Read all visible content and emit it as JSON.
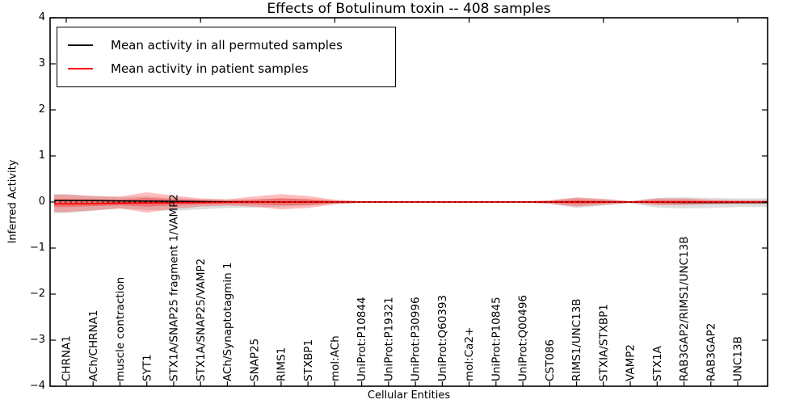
{
  "window": {
    "background": "#ffffff"
  },
  "chart_data": {
    "type": "line",
    "title": "Effects of Botulinum toxin -- 408 samples",
    "xlabel": "Cellular Entities",
    "ylabel": "Inferred Activity",
    "ylim": [
      -4,
      4
    ],
    "ytick_labels": [
      "4",
      "3",
      "2",
      "1",
      "0",
      "−1",
      "−2",
      "−3",
      "−4"
    ],
    "ytick_values": [
      4,
      3,
      2,
      1,
      0,
      -1,
      -2,
      -3,
      -4
    ],
    "grid": false,
    "x_tick_rotation": 90,
    "top_axis_major_tick_indices": [
      0,
      5,
      10,
      15,
      20,
      25
    ],
    "legend": {
      "position": "upper left",
      "entries": [
        {
          "label": "Mean activity in all permuted samples",
          "color": "#000000"
        },
        {
          "label": "Mean activity in patient samples",
          "color": "#ff0000"
        }
      ]
    },
    "categories": [
      "CHRNA1",
      "ACh/CHRNA1",
      "muscle contraction",
      "SYT1",
      "STX1A/SNAP25 fragment 1/VAMP2",
      "STX1A/SNAP25/VAMP2",
      "ACh/Synaptotagmin 1",
      "SNAP25",
      "RIMS1",
      "STXBP1",
      "mol:ACh",
      "UniProt:P10844",
      "UniProt:P19321",
      "UniProt:P30996",
      "UniProt:Q60393",
      "mol:Ca2+",
      "UniProt:P10845",
      "UniProt:Q00496",
      "CST086",
      "RIMS1/UNC13B",
      "STXIA/STXBP1",
      "VAMP2",
      "STX1A",
      "RAB3GAP2/RIMS1/UNC13B",
      "RAB3GAP2",
      "UNC13B"
    ],
    "series": [
      {
        "name": "Mean activity in all permuted samples",
        "color": "#000000",
        "width": 1.5,
        "values": [
          0.03,
          0.03,
          0.025,
          0.02,
          0.015,
          0.01,
          0.005,
          0.002,
          0,
          0,
          0,
          0,
          0,
          0,
          0,
          0,
          0,
          0,
          0,
          0,
          0,
          0,
          -0.005,
          -0.008,
          -0.01,
          -0.01
        ]
      },
      {
        "name": "Mean activity in patient samples",
        "color": "#ff0000",
        "width": 1.8,
        "values": [
          -0.04,
          -0.035,
          -0.025,
          -0.02,
          -0.015,
          -0.01,
          -0.005,
          0,
          0,
          0,
          0,
          0,
          0,
          0,
          0,
          0,
          0,
          0,
          0,
          0,
          0,
          0,
          0,
          0,
          0,
          0
        ]
      }
    ],
    "bands": [
      {
        "name": "permuted-samples-std-band",
        "color": "rgba(0,0,0,0.13)",
        "upper": [
          0.17,
          0.13,
          0.1,
          0.12,
          0.09,
          0.06,
          0.05,
          0.06,
          0.08,
          0.06,
          0.03,
          0.015,
          0.01,
          0.01,
          0.01,
          0.01,
          0.01,
          0.01,
          0.03,
          0.09,
          0.06,
          0.02,
          0.09,
          0.1,
          0.09,
          0.08
        ],
        "lower": [
          -0.24,
          -0.19,
          -0.14,
          -0.17,
          -0.19,
          -0.16,
          -0.13,
          -0.12,
          -0.1,
          -0.08,
          -0.04,
          -0.02,
          -0.01,
          -0.01,
          -0.01,
          -0.01,
          -0.01,
          -0.01,
          -0.04,
          -0.13,
          -0.08,
          -0.03,
          -0.12,
          -0.14,
          -0.13,
          -0.11
        ]
      },
      {
        "name": "patient-samples-outer-band",
        "color": "rgba(255,0,0,0.26)",
        "upper": [
          0.16,
          0.13,
          0.12,
          0.21,
          0.14,
          0.08,
          0.06,
          0.12,
          0.17,
          0.13,
          0.05,
          0.02,
          0.015,
          0.015,
          0.015,
          0.015,
          0.015,
          0.015,
          0.04,
          0.1,
          0.07,
          0.02,
          0.08,
          0.08,
          0.05,
          0.04
        ],
        "lower": [
          -0.22,
          -0.18,
          -0.14,
          -0.23,
          -0.15,
          -0.1,
          -0.08,
          -0.1,
          -0.16,
          -0.13,
          -0.05,
          -0.02,
          -0.015,
          -0.015,
          -0.015,
          -0.015,
          -0.015,
          -0.015,
          -0.04,
          -0.1,
          -0.06,
          -0.02,
          -0.07,
          -0.07,
          -0.05,
          -0.04
        ]
      },
      {
        "name": "patient-samples-inner-band",
        "color": "rgba(255,0,0,0.30)",
        "upper": [
          0.07,
          0.06,
          0.05,
          0.09,
          0.06,
          0.04,
          0.03,
          0.05,
          0.08,
          0.06,
          0.025,
          0.01,
          0.008,
          0.008,
          0.008,
          0.008,
          0.008,
          0.008,
          0.02,
          0.05,
          0.03,
          0.01,
          0.04,
          0.04,
          0.025,
          0.02
        ],
        "lower": [
          -0.11,
          -0.09,
          -0.07,
          -0.1,
          -0.07,
          -0.05,
          -0.04,
          -0.05,
          -0.07,
          -0.06,
          -0.025,
          -0.01,
          -0.008,
          -0.008,
          -0.008,
          -0.008,
          -0.008,
          -0.008,
          -0.02,
          -0.05,
          -0.03,
          -0.01,
          -0.035,
          -0.035,
          -0.025,
          -0.02
        ]
      }
    ],
    "zero_line": {
      "value": 0,
      "style": "dashed",
      "color": "#000000"
    },
    "frame_color": "#000000"
  }
}
